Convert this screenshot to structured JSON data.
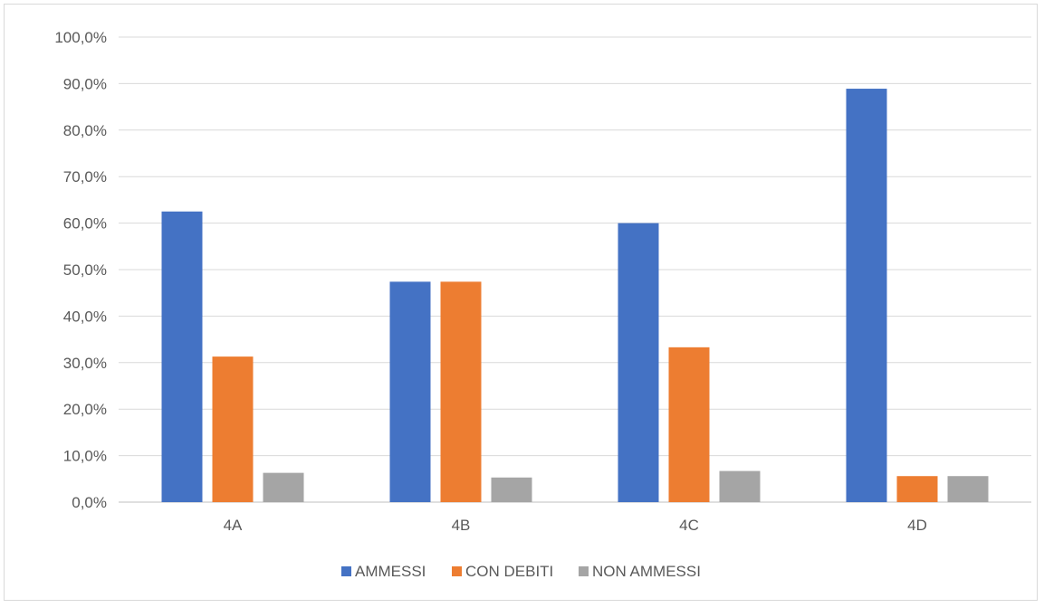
{
  "chart_data": {
    "type": "bar",
    "categories": [
      "4A",
      "4B",
      "4C",
      "4D"
    ],
    "series": [
      {
        "name": "AMMESSI",
        "color": "#4472C4",
        "values": [
          62.5,
          47.4,
          60.0,
          88.9
        ]
      },
      {
        "name": "CON DEBITI",
        "color": "#ED7D31",
        "values": [
          31.3,
          47.4,
          33.3,
          5.6
        ]
      },
      {
        "name": "NON AMMESSI",
        "color": "#A5A5A5",
        "values": [
          6.3,
          5.3,
          6.7,
          5.6
        ]
      }
    ],
    "yticks": [
      "0,0%",
      "10,0%",
      "20,0%",
      "30,0%",
      "40,0%",
      "50,0%",
      "60,0%",
      "70,0%",
      "80,0%",
      "90,0%",
      "100,0%"
    ],
    "ylim": [
      0,
      100
    ],
    "grid": true,
    "legend_position": "bottom",
    "title": "",
    "xlabel": "",
    "ylabel": ""
  }
}
